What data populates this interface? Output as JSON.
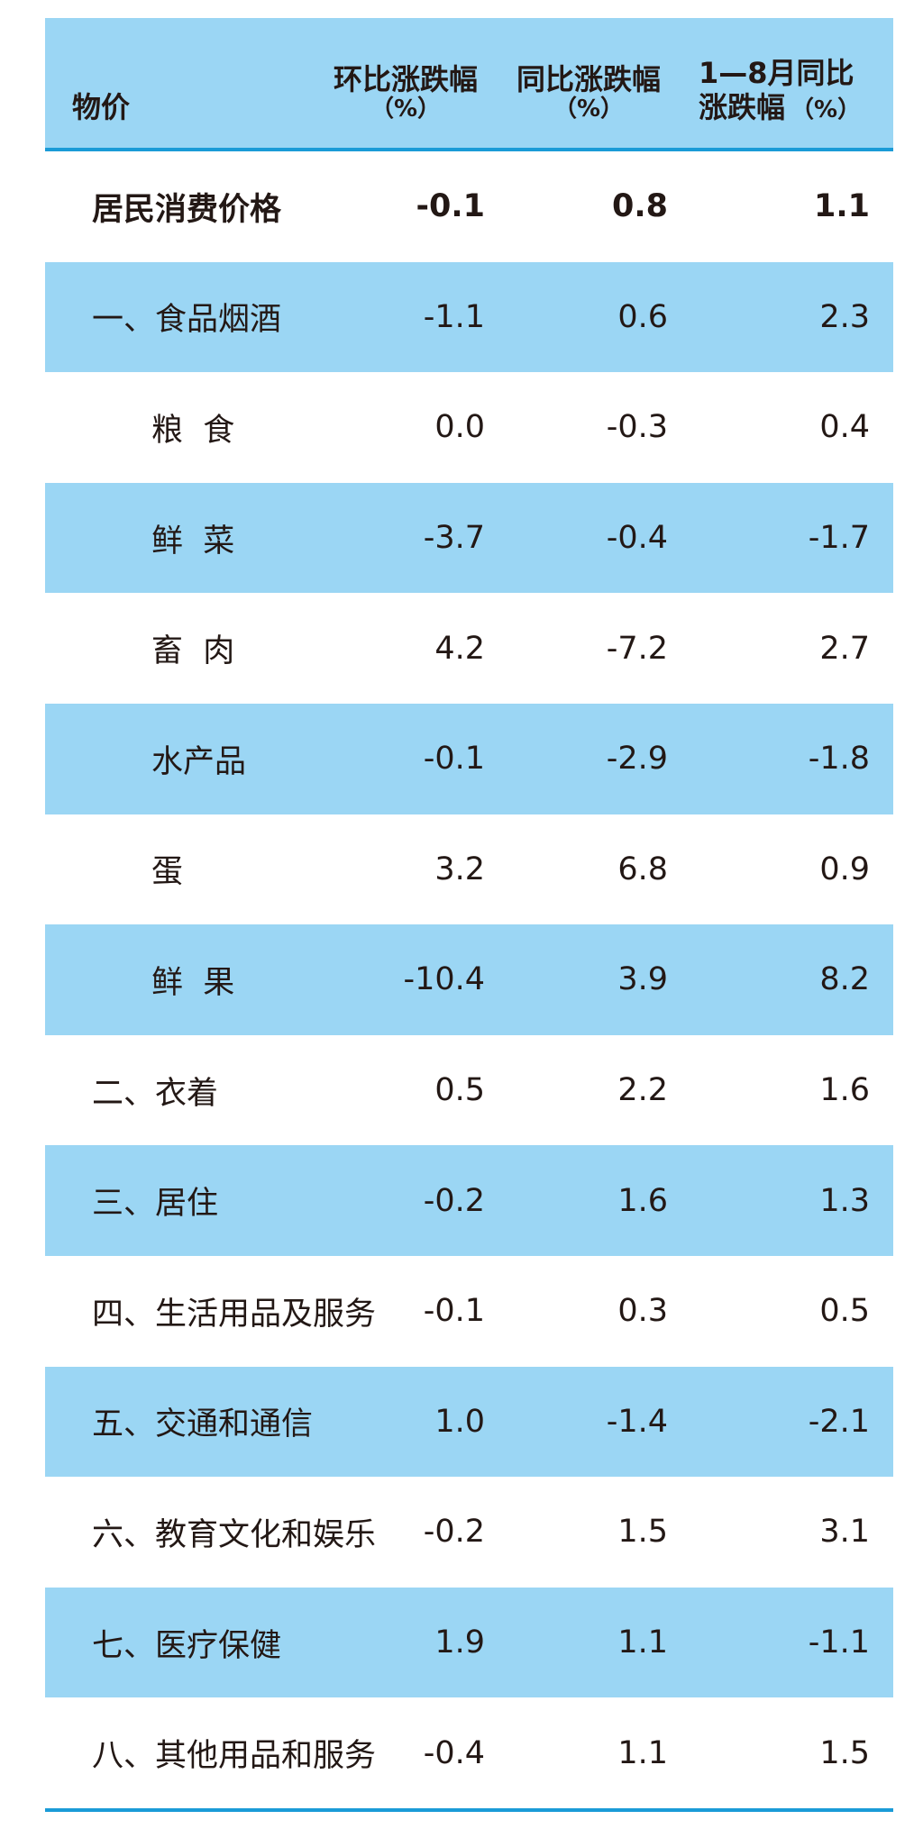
{
  "header": {
    "item": "物价",
    "mom_title": "环比涨跌幅",
    "mom_unit": "（%）",
    "yoy_title": "同比涨跌幅",
    "yoy_unit": "（%）",
    "ytd_title_line1": "1—8月同比",
    "ytd_title_line2": "涨跌幅",
    "ytd_unit": "（%）"
  },
  "rows": [
    {
      "name": "居民消费价格",
      "mom": "-0.1",
      "yoy": "0.8",
      "ytd": "1.1"
    },
    {
      "name": "一、食品烟酒",
      "mom": "-1.1",
      "yoy": "0.6",
      "ytd": "2.3"
    },
    {
      "name": "粮  食",
      "mom": "0.0",
      "yoy": "-0.3",
      "ytd": "0.4"
    },
    {
      "name": "鲜  菜",
      "mom": "-3.7",
      "yoy": "-0.4",
      "ytd": "-1.7"
    },
    {
      "name": "畜  肉",
      "mom": "4.2",
      "yoy": "-7.2",
      "ytd": "2.7"
    },
    {
      "name": "水产品",
      "mom": "-0.1",
      "yoy": "-2.9",
      "ytd": "-1.8"
    },
    {
      "name": "蛋",
      "mom": "3.2",
      "yoy": "6.8",
      "ytd": "0.9"
    },
    {
      "name": "鲜  果",
      "mom": "-10.4",
      "yoy": "3.9",
      "ytd": "8.2"
    },
    {
      "name": "二、衣着",
      "mom": "0.5",
      "yoy": "2.2",
      "ytd": "1.6"
    },
    {
      "name": "三、居住",
      "mom": "-0.2",
      "yoy": "1.6",
      "ytd": "1.3"
    },
    {
      "name": "四、生活用品及服务",
      "mom": "-0.1",
      "yoy": "0.3",
      "ytd": "0.5"
    },
    {
      "name": "五、交通和通信",
      "mom": "1.0",
      "yoy": "-1.4",
      "ytd": "-2.1"
    },
    {
      "name": "六、教育文化和娱乐",
      "mom": "-0.2",
      "yoy": "1.5",
      "ytd": "3.1"
    },
    {
      "name": "七、医疗保健",
      "mom": "1.9",
      "yoy": "1.1",
      "ytd": "-1.1"
    },
    {
      "name": "八、其他用品和服务",
      "mom": "-0.4",
      "yoy": "1.1",
      "ytd": "1.5"
    }
  ],
  "colors": {
    "band": "#9bd6f4",
    "rule": "#1a9bd7",
    "text": "#231815"
  }
}
